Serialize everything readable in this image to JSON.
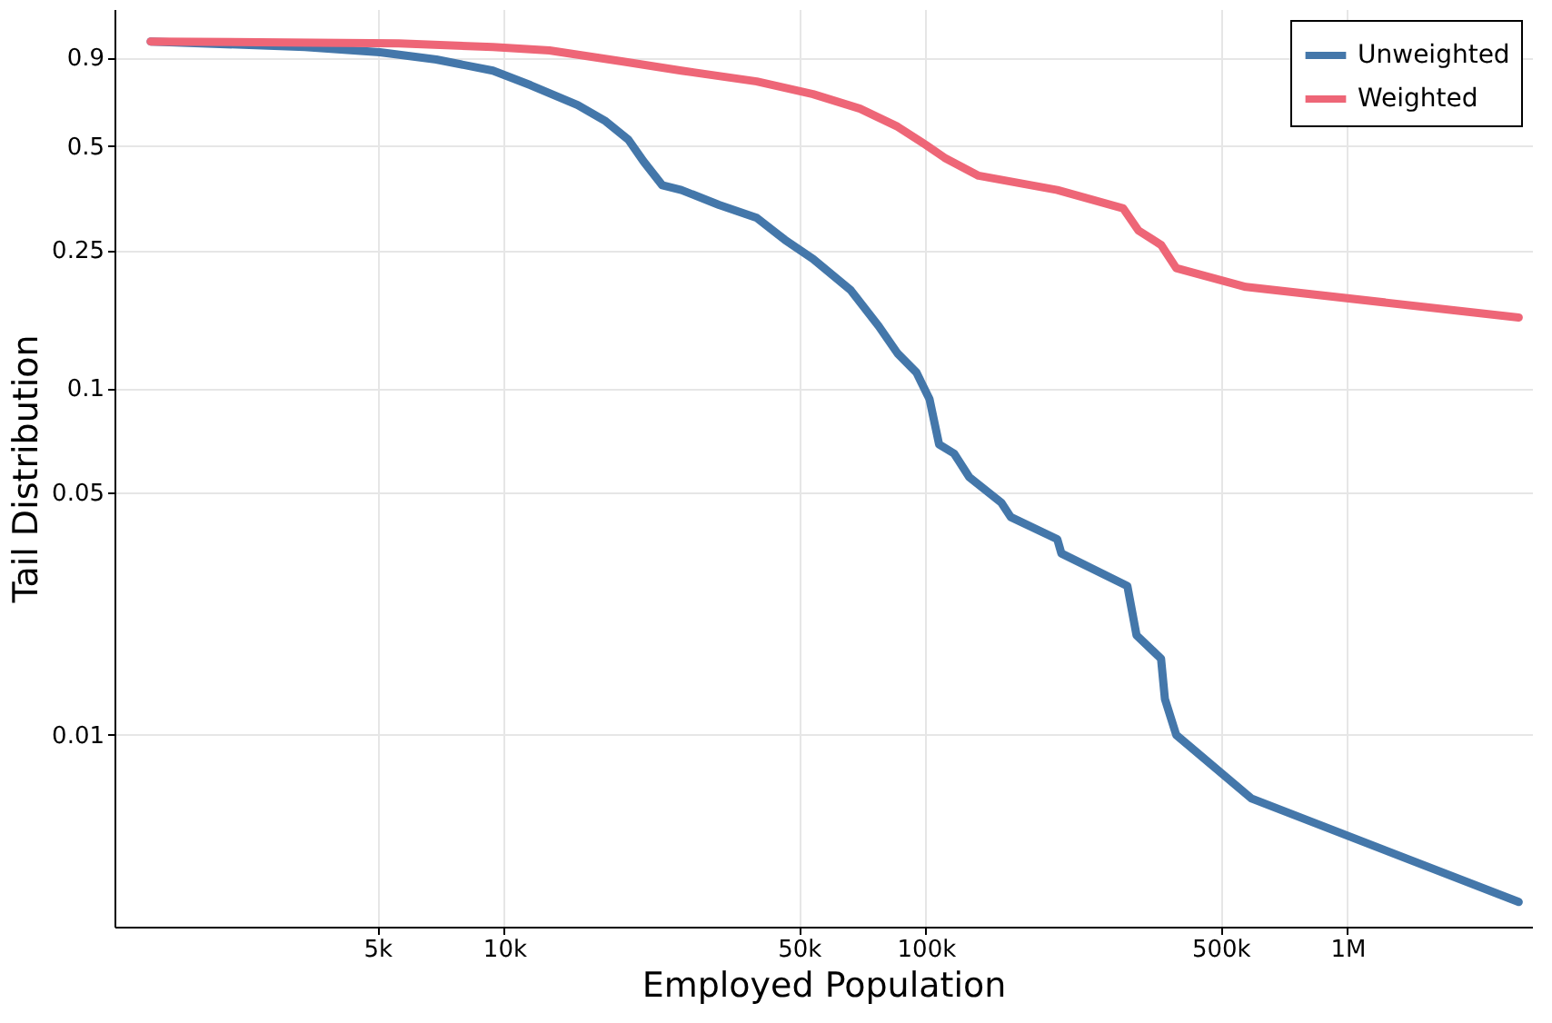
{
  "chart_data": {
    "type": "line",
    "xlabel": "Employed Population",
    "ylabel": "Tail Distribution",
    "log": "xy",
    "grid": true,
    "legend": "top right",
    "line_style": "solid",
    "marker": "none",
    "xlim": [
      1190,
      2740000
    ],
    "ylim": [
      0.0028,
      1.24
    ],
    "xticks": [
      {
        "value": 5000,
        "label": "5k"
      },
      {
        "value": 10000,
        "label": "10k"
      },
      {
        "value": 50000,
        "label": "50k"
      },
      {
        "value": 100000,
        "label": "100k"
      },
      {
        "value": 500000,
        "label": "500k"
      },
      {
        "value": 1000000,
        "label": "1M"
      }
    ],
    "yticks": [
      0.01,
      0.05,
      0.1,
      0.25,
      0.5,
      0.9
    ],
    "series": [
      {
        "name": "Unweighted",
        "color": "#4477aa",
        "x": [
          1450,
          3365,
          5070,
          6900,
          9400,
          11550,
          14930,
          17400,
          19700,
          21400,
          23700,
          26300,
          32300,
          39700,
          46300,
          54000,
          66300,
          77300,
          85700,
          95000,
          102000,
          107500,
          116700,
          126800,
          151000,
          159000,
          205000,
          209600,
          300600,
          316000,
          361300,
          369000,
          392600,
          592000,
          2548000
        ],
        "values": [
          1.0,
          0.964,
          0.931,
          0.887,
          0.824,
          0.748,
          0.656,
          0.589,
          0.521,
          0.451,
          0.385,
          0.373,
          0.338,
          0.31,
          0.268,
          0.236,
          0.192,
          0.151,
          0.126,
          0.111,
          0.0931,
          0.0689,
          0.0648,
          0.0554,
          0.0468,
          0.0425,
          0.0367,
          0.0334,
          0.0269,
          0.0194,
          0.0166,
          0.0127,
          0.01,
          0.00656,
          0.0033
        ]
      },
      {
        "name": "Weighted",
        "color": "#ee6677",
        "x": [
          1450,
          5620,
          9400,
          12800,
          19300,
          26300,
          39700,
          54000,
          69800,
          85700,
          100000,
          110800,
          133400,
          205000,
          294000,
          319400,
          361300,
          392600,
          574000,
          2548000
        ],
        "values": [
          1.0,
          0.988,
          0.964,
          0.942,
          0.874,
          0.824,
          0.767,
          0.705,
          0.64,
          0.568,
          0.503,
          0.462,
          0.41,
          0.373,
          0.33,
          0.285,
          0.259,
          0.222,
          0.196,
          0.16
        ]
      }
    ]
  }
}
